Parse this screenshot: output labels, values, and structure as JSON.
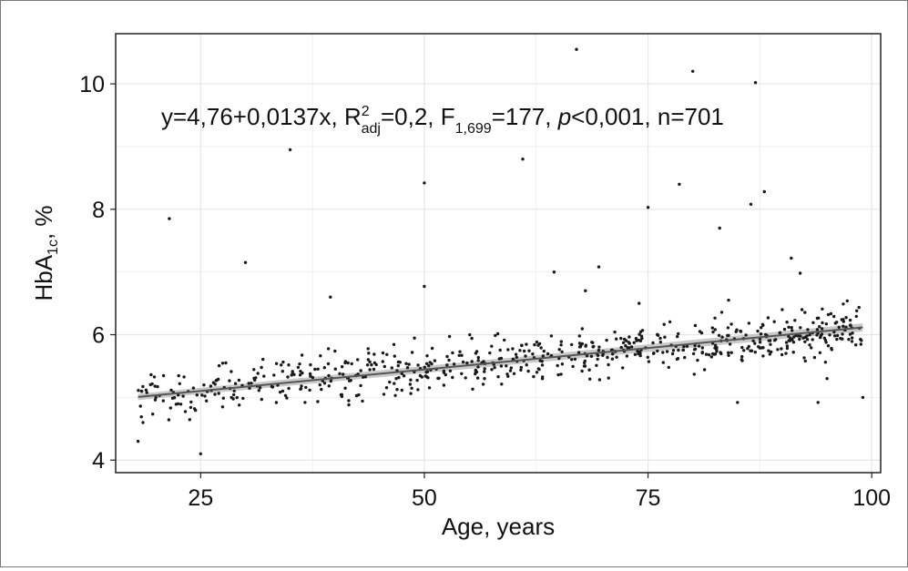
{
  "chart_data": {
    "type": "scatter",
    "title": "",
    "xlabel": "Age, years",
    "ylabel": {
      "base": "HbA",
      "sub": "1c",
      "suffix": ", %"
    },
    "xlim": [
      15.5,
      101
    ],
    "ylim": [
      3.8,
      10.8
    ],
    "xticks": [
      25,
      50,
      75,
      100
    ],
    "yticks": [
      4,
      6,
      8,
      10
    ],
    "grid": true,
    "legend": "none",
    "colors": {
      "points": "#1a1a1a",
      "fit_line": "#555555",
      "ci_band": "#bdbdbd",
      "grid": "#e6e6e6",
      "frame": "#222222"
    },
    "annotation": {
      "prefix": "y=4,76+0,0137x, R",
      "sup": "2",
      "sub_adj": "adj",
      "r2_value": "=0,2, F",
      "f_sub": "1,699",
      "f_value": "=177, ",
      "p": "p",
      "tail": "<0,001, n=701"
    },
    "fit": {
      "intercept": 4.76,
      "slope": 0.0137,
      "x_range": [
        18,
        99
      ],
      "ci_halfwidth": 0.05
    },
    "n": 701,
    "outliers": [
      {
        "x": 18,
        "y": 4.3
      },
      {
        "x": 21.5,
        "y": 7.85
      },
      {
        "x": 25,
        "y": 4.1
      },
      {
        "x": 30,
        "y": 7.15
      },
      {
        "x": 35,
        "y": 8.95
      },
      {
        "x": 50,
        "y": 8.42
      },
      {
        "x": 50,
        "y": 6.77
      },
      {
        "x": 61,
        "y": 8.8
      },
      {
        "x": 64.5,
        "y": 7.0
      },
      {
        "x": 67,
        "y": 10.55
      },
      {
        "x": 69.5,
        "y": 7.08
      },
      {
        "x": 75,
        "y": 8.03
      },
      {
        "x": 78.5,
        "y": 8.4
      },
      {
        "x": 80,
        "y": 10.2
      },
      {
        "x": 83,
        "y": 7.7
      },
      {
        "x": 86.5,
        "y": 8.08
      },
      {
        "x": 87,
        "y": 10.02
      },
      {
        "x": 88,
        "y": 8.28
      },
      {
        "x": 91,
        "y": 7.22
      },
      {
        "x": 92,
        "y": 6.98
      },
      {
        "x": 39.5,
        "y": 6.6
      },
      {
        "x": 68,
        "y": 6.7
      },
      {
        "x": 74,
        "y": 6.5
      },
      {
        "x": 84,
        "y": 6.55
      },
      {
        "x": 90,
        "y": 6.4
      },
      {
        "x": 99,
        "y": 5.0
      },
      {
        "x": 95,
        "y": 5.3
      },
      {
        "x": 20,
        "y": 5.0
      },
      {
        "x": 85,
        "y": 4.92
      },
      {
        "x": 94,
        "y": 4.92
      }
    ]
  }
}
